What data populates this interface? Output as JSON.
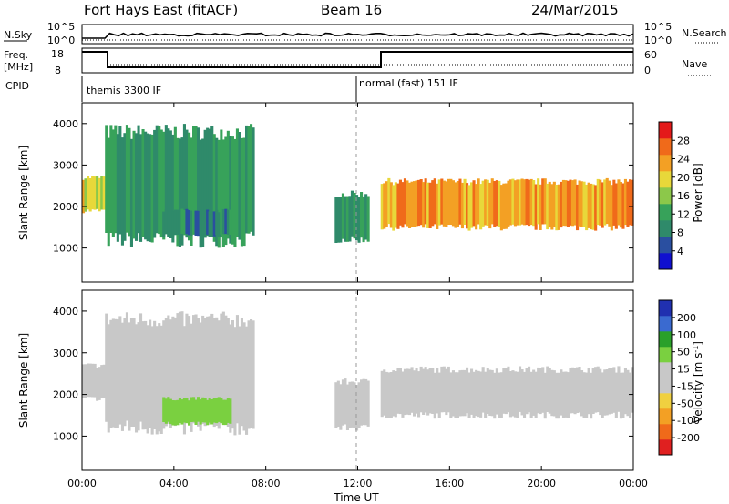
{
  "header": {
    "station": "Fort Hays East (fitACF)",
    "beam": "Beam 16",
    "date": "24/Mar/2015"
  },
  "top_panels": {
    "nsky": {
      "label": "N.Sky",
      "ticks": [
        "10^5",
        "10^0"
      ],
      "right_ticks": [
        "10^5",
        "10^0"
      ],
      "right_label": "N.Search"
    },
    "freq": {
      "label_line1": "Freq.",
      "label_line2": "[MHz]",
      "ticks": [
        "18",
        "8"
      ],
      "right_ticks": [
        "60",
        "0"
      ],
      "right_label": "Nave"
    },
    "cpid": {
      "label": "CPID",
      "mode1": "themis 3300 IF",
      "mode2": "normal (fast) 151 IF"
    }
  },
  "colors": {
    "power_scale": [
      "#1010d0",
      "#2a4fa0",
      "#2f8a6a",
      "#37a25a",
      "#8cc84a",
      "#e8d83a",
      "#f3a024",
      "#f06a1a",
      "#e41a1a"
    ],
    "velocity_scale": [
      "#e02020",
      "#f06a1a",
      "#f3a024",
      "#f0d040",
      "#c8c8c8",
      "#c8c8c8",
      "#7ad040",
      "#2aa02a",
      "#3a6ad0",
      "#2030b0"
    ]
  },
  "chart_data": [
    {
      "type": "heatmap",
      "title": "Power",
      "xlabel": "Time UT",
      "ylabel": "Slant Range [km]",
      "xlim": [
        "00:00",
        "24:00"
      ],
      "ylim": [
        180,
        4500
      ],
      "yticks": [
        1000,
        2000,
        3000,
        4000
      ],
      "colorbar": {
        "label": "Power [dB]",
        "ticks": [
          "4",
          "8",
          "12",
          "16",
          "20",
          "24",
          "28"
        ],
        "range": [
          0,
          30
        ]
      },
      "regions": [
        {
          "t_start": 0.0,
          "t_end": 1.0,
          "r_low": 1900,
          "r_high": 2700,
          "power": 18
        },
        {
          "t_start": 1.0,
          "t_end": 7.5,
          "r_low": 1200,
          "r_high": 3800,
          "power": 10
        },
        {
          "t_start": 3.5,
          "t_end": 6.5,
          "r_low": 1300,
          "r_high": 1900,
          "power": 8
        },
        {
          "t_start": 11.0,
          "t_end": 12.5,
          "r_low": 1200,
          "r_high": 2300,
          "power": 10
        },
        {
          "t_start": 13.0,
          "t_end": 24.0,
          "r_low": 1500,
          "r_high": 2600,
          "power": 22
        }
      ]
    },
    {
      "type": "heatmap",
      "title": "Velocity",
      "xlabel": "Time UT",
      "ylabel": "Slant Range [km]",
      "xlim": [
        "00:00",
        "24:00"
      ],
      "ylim": [
        180,
        4500
      ],
      "yticks": [
        1000,
        2000,
        3000,
        4000
      ],
      "xticks": [
        "00:00",
        "04:00",
        "08:00",
        "12:00",
        "16:00",
        "20:00",
        "00:00"
      ],
      "colorbar": {
        "label": "Velocity [m s^-1]",
        "label_main": "Velocity [m s",
        "label_sup": "-1",
        "label_end": "]",
        "ticks": [
          "-200",
          "-100",
          "-50",
          "-15",
          "15",
          "50",
          "100",
          "200"
        ],
        "range": [
          -250,
          250
        ]
      },
      "regions": [
        {
          "t_start": 0.0,
          "t_end": 1.0,
          "r_low": 1900,
          "r_high": 2700,
          "velocity": 0
        },
        {
          "t_start": 1.0,
          "t_end": 7.5,
          "r_low": 1200,
          "r_high": 3800,
          "velocity": -20
        },
        {
          "t_start": 3.5,
          "t_end": 6.5,
          "r_low": 1300,
          "r_high": 1900,
          "velocity": 60
        },
        {
          "t_start": 11.0,
          "t_end": 12.5,
          "r_low": 1200,
          "r_high": 2300,
          "velocity": 40
        },
        {
          "t_start": 13.0,
          "t_end": 24.0,
          "r_low": 1500,
          "r_high": 2600,
          "velocity": 0
        }
      ]
    }
  ]
}
